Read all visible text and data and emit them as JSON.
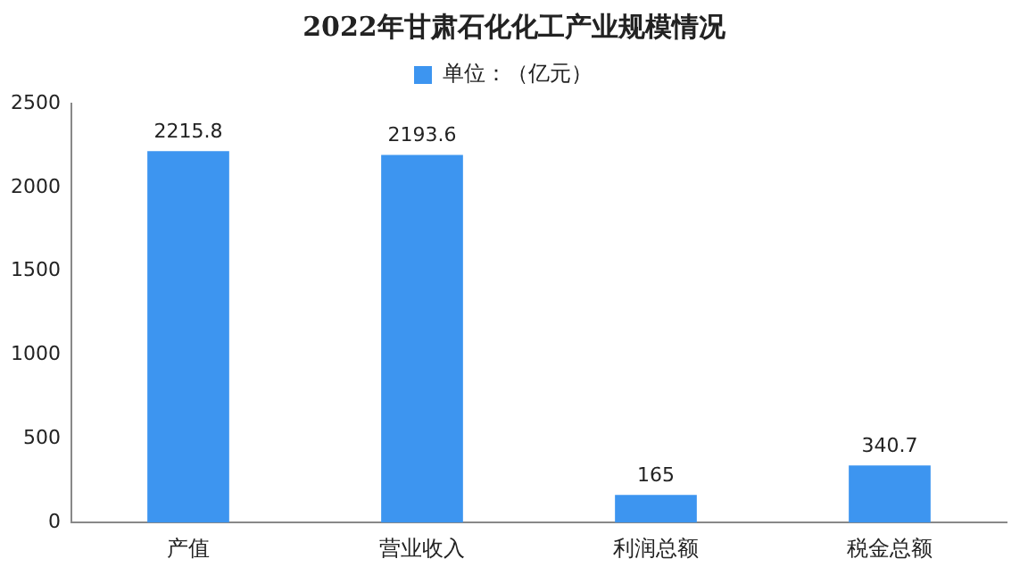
{
  "chart_data": {
    "type": "bar",
    "title": "2022年甘肃石化化工产业规模情况",
    "categories": [
      "产值",
      "营业收入",
      "利润总额",
      "税金总额"
    ],
    "series": [
      {
        "name": "单位：（亿元）",
        "color": "#3d95f0",
        "values": [
          2215.8,
          2193.6,
          165,
          340.7
        ]
      }
    ],
    "ylim": [
      0,
      2500
    ],
    "yticks": [
      0,
      500,
      1000,
      1500,
      2000,
      2500
    ],
    "grid": false,
    "legend": "top",
    "data_labels": true
  }
}
